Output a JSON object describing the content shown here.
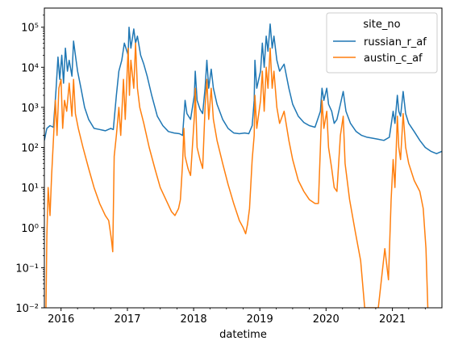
{
  "chart_data": {
    "type": "line",
    "title": "",
    "xlabel": "datetime",
    "ylabel": "",
    "yscale": "log",
    "ylim": [
      0.01,
      300000
    ],
    "xlim": [
      "2015-10-01",
      "2021-10-01"
    ],
    "x_ticks": [
      "2016",
      "2017",
      "2018",
      "2019",
      "2020",
      "2021"
    ],
    "y_ticks": [
      {
        "value": 0.01,
        "label": "10⁻²"
      },
      {
        "value": 0.1,
        "label": "10⁻¹"
      },
      {
        "value": 1,
        "label": "10⁰"
      },
      {
        "value": 10,
        "label": "10¹"
      },
      {
        "value": 100,
        "label": "10²"
      },
      {
        "value": 1000,
        "label": "10³"
      },
      {
        "value": 10000,
        "label": "10⁴"
      },
      {
        "value": 100000,
        "label": "10⁵"
      }
    ],
    "legend": {
      "title": "site_no",
      "position": "top-right"
    },
    "grid": false,
    "series": [
      {
        "name": "russian_r_af",
        "color": "#1f77b4",
        "points": [
          [
            "2015-10-01",
            150
          ],
          [
            "2015-10-15",
            300
          ],
          [
            "2015-11-01",
            350
          ],
          [
            "2015-11-20",
            320
          ],
          [
            "2015-12-05",
            3000
          ],
          [
            "2015-12-15",
            18000
          ],
          [
            "2015-12-25",
            5000
          ],
          [
            "2016-01-05",
            20000
          ],
          [
            "2016-01-15",
            4000
          ],
          [
            "2016-01-25",
            30000
          ],
          [
            "2016-02-05",
            8000
          ],
          [
            "2016-02-15",
            15000
          ],
          [
            "2016-03-01",
            6000
          ],
          [
            "2016-03-10",
            45000
          ],
          [
            "2016-03-20",
            20000
          ],
          [
            "2016-04-01",
            8000
          ],
          [
            "2016-04-20",
            3000
          ],
          [
            "2016-05-10",
            1000
          ],
          [
            "2016-06-01",
            500
          ],
          [
            "2016-07-01",
            300
          ],
          [
            "2016-08-01",
            280
          ],
          [
            "2016-09-01",
            260
          ],
          [
            "2016-10-01",
            300
          ],
          [
            "2016-10-15",
            280
          ],
          [
            "2016-11-01",
            2000
          ],
          [
            "2016-11-15",
            8000
          ],
          [
            "2016-12-01",
            15000
          ],
          [
            "2016-12-15",
            40000
          ],
          [
            "2017-01-05",
            20000
          ],
          [
            "2017-01-10",
            100000
          ],
          [
            "2017-01-20",
            30000
          ],
          [
            "2017-02-05",
            90000
          ],
          [
            "2017-02-15",
            40000
          ],
          [
            "2017-02-25",
            60000
          ],
          [
            "2017-03-15",
            20000
          ],
          [
            "2017-04-01",
            12000
          ],
          [
            "2017-04-20",
            6000
          ],
          [
            "2017-05-15",
            2000
          ],
          [
            "2017-06-15",
            600
          ],
          [
            "2017-07-15",
            350
          ],
          [
            "2017-08-15",
            250
          ],
          [
            "2017-09-15",
            230
          ],
          [
            "2017-10-15",
            220
          ],
          [
            "2017-11-01",
            200
          ],
          [
            "2017-11-15",
            1500
          ],
          [
            "2017-11-25",
            700
          ],
          [
            "2017-12-15",
            500
          ],
          [
            "2018-01-05",
            2000
          ],
          [
            "2018-01-10",
            8000
          ],
          [
            "2018-01-20",
            1500
          ],
          [
            "2018-02-05",
            900
          ],
          [
            "2018-02-20",
            700
          ],
          [
            "2018-03-05",
            3000
          ],
          [
            "2018-03-15",
            15000
          ],
          [
            "2018-03-25",
            3000
          ],
          [
            "2018-04-08",
            9000
          ],
          [
            "2018-04-20",
            3000
          ],
          [
            "2018-05-10",
            1200
          ],
          [
            "2018-06-10",
            500
          ],
          [
            "2018-07-10",
            300
          ],
          [
            "2018-08-10",
            230
          ],
          [
            "2018-09-10",
            220
          ],
          [
            "2018-10-10",
            230
          ],
          [
            "2018-11-01",
            220
          ],
          [
            "2018-11-20",
            350
          ],
          [
            "2018-12-01",
            1500
          ],
          [
            "2018-12-05",
            15000
          ],
          [
            "2018-12-15",
            3000
          ],
          [
            "2019-01-05",
            8000
          ],
          [
            "2019-01-15",
            40000
          ],
          [
            "2019-01-25",
            10000
          ],
          [
            "2019-02-05",
            60000
          ],
          [
            "2019-02-15",
            25000
          ],
          [
            "2019-02-27",
            120000
          ],
          [
            "2019-03-10",
            30000
          ],
          [
            "2019-03-20",
            60000
          ],
          [
            "2019-04-05",
            15000
          ],
          [
            "2019-04-20",
            8000
          ],
          [
            "2019-05-15",
            12000
          ],
          [
            "2019-06-10",
            3000
          ],
          [
            "2019-07-01",
            1200
          ],
          [
            "2019-08-01",
            600
          ],
          [
            "2019-09-01",
            420
          ],
          [
            "2019-10-01",
            350
          ],
          [
            "2019-11-01",
            320
          ],
          [
            "2019-12-01",
            800
          ],
          [
            "2019-12-10",
            3000
          ],
          [
            "2019-12-20",
            1500
          ],
          [
            "2020-01-05",
            3000
          ],
          [
            "2020-01-15",
            1200
          ],
          [
            "2020-02-01",
            800
          ],
          [
            "2020-02-15",
            400
          ],
          [
            "2020-03-01",
            500
          ],
          [
            "2020-03-20",
            1200
          ],
          [
            "2020-04-05",
            2500
          ],
          [
            "2020-04-20",
            800
          ],
          [
            "2020-05-15",
            400
          ],
          [
            "2020-06-15",
            250
          ],
          [
            "2020-07-15",
            200
          ],
          [
            "2020-08-15",
            180
          ],
          [
            "2020-09-15",
            170
          ],
          [
            "2020-10-15",
            160
          ],
          [
            "2020-11-15",
            150
          ],
          [
            "2020-12-15",
            180
          ],
          [
            "2021-01-05",
            800
          ],
          [
            "2021-01-15",
            400
          ],
          [
            "2021-01-28",
            2000
          ],
          [
            "2021-02-05",
            800
          ],
          [
            "2021-02-15",
            600
          ],
          [
            "2021-03-01",
            2500
          ],
          [
            "2021-03-15",
            700
          ],
          [
            "2021-04-01",
            400
          ],
          [
            "2021-05-01",
            250
          ],
          [
            "2021-06-01",
            150
          ],
          [
            "2021-07-01",
            100
          ],
          [
            "2021-08-01",
            80
          ],
          [
            "2021-09-01",
            70
          ],
          [
            "2021-10-01",
            80
          ]
        ]
      },
      {
        "name": "austin_c_af",
        "color": "#ff7f0e",
        "points": [
          [
            "2015-10-10",
            0.01
          ],
          [
            "2015-10-15",
            0.6
          ],
          [
            "2015-10-22",
            10
          ],
          [
            "2015-11-01",
            2
          ],
          [
            "2015-11-10",
            20
          ],
          [
            "2015-11-20",
            150
          ],
          [
            "2015-12-01",
            1500
          ],
          [
            "2015-12-10",
            200
          ],
          [
            "2015-12-20",
            3000
          ],
          [
            "2016-01-01",
            5000
          ],
          [
            "2016-01-10",
            300
          ],
          [
            "2016-01-20",
            1500
          ],
          [
            "2016-02-01",
            800
          ],
          [
            "2016-02-15",
            4000
          ],
          [
            "2016-03-01",
            600
          ],
          [
            "2016-03-10",
            5000
          ],
          [
            "2016-03-20",
            700
          ],
          [
            "2016-04-05",
            300
          ],
          [
            "2016-05-01",
            100
          ],
          [
            "2016-06-01",
            30
          ],
          [
            "2016-07-01",
            10
          ],
          [
            "2016-08-01",
            4
          ],
          [
            "2016-09-01",
            2
          ],
          [
            "2016-09-20",
            1.5
          ],
          [
            "2016-10-05",
            0.5
          ],
          [
            "2016-10-12",
            0.25
          ],
          [
            "2016-10-20",
            60
          ],
          [
            "2016-11-01",
            200
          ],
          [
            "2016-11-15",
            1000
          ],
          [
            "2016-11-25",
            200
          ],
          [
            "2016-12-10",
            5000
          ],
          [
            "2016-12-20",
            500
          ],
          [
            "2017-01-05",
            30000
          ],
          [
            "2017-01-12",
            2000
          ],
          [
            "2017-01-20",
            15000
          ],
          [
            "2017-02-05",
            3000
          ],
          [
            "2017-02-15",
            40000
          ],
          [
            "2017-02-25",
            3000
          ],
          [
            "2017-03-10",
            1000
          ],
          [
            "2017-04-01",
            400
          ],
          [
            "2017-05-01",
            100
          ],
          [
            "2017-06-01",
            30
          ],
          [
            "2017-07-01",
            10
          ],
          [
            "2017-08-01",
            5
          ],
          [
            "2017-09-01",
            2.5
          ],
          [
            "2017-09-20",
            2
          ],
          [
            "2017-10-10",
            3
          ],
          [
            "2017-10-20",
            5
          ],
          [
            "2017-11-01",
            40
          ],
          [
            "2017-11-08",
            300
          ],
          [
            "2017-11-15",
            60
          ],
          [
            "2017-12-01",
            30
          ],
          [
            "2017-12-15",
            20
          ],
          [
            "2018-01-05",
            600
          ],
          [
            "2018-01-10",
            3000
          ],
          [
            "2018-01-20",
            100
          ],
          [
            "2018-02-05",
            50
          ],
          [
            "2018-02-20",
            30
          ],
          [
            "2018-03-05",
            1000
          ],
          [
            "2018-03-15",
            5000
          ],
          [
            "2018-03-25",
            500
          ],
          [
            "2018-04-08",
            3000
          ],
          [
            "2018-04-20",
            500
          ],
          [
            "2018-05-10",
            150
          ],
          [
            "2018-06-10",
            40
          ],
          [
            "2018-07-10",
            12
          ],
          [
            "2018-08-10",
            4
          ],
          [
            "2018-09-10",
            1.5
          ],
          [
            "2018-10-01",
            1
          ],
          [
            "2018-10-15",
            0.7
          ],
          [
            "2018-10-25",
            1.2
          ],
          [
            "2018-11-05",
            3
          ],
          [
            "2018-11-20",
            50
          ],
          [
            "2018-12-01",
            200
          ],
          [
            "2018-12-05",
            2000
          ],
          [
            "2018-12-15",
            300
          ],
          [
            "2019-01-05",
            1500
          ],
          [
            "2019-01-15",
            8000
          ],
          [
            "2019-01-25",
            800
          ],
          [
            "2019-02-05",
            10000
          ],
          [
            "2019-02-15",
            3000
          ],
          [
            "2019-02-27",
            30000
          ],
          [
            "2019-03-10",
            3000
          ],
          [
            "2019-03-20",
            8000
          ],
          [
            "2019-04-05",
            1000
          ],
          [
            "2019-04-20",
            400
          ],
          [
            "2019-05-15",
            800
          ],
          [
            "2019-06-10",
            150
          ],
          [
            "2019-07-01",
            50
          ],
          [
            "2019-08-01",
            15
          ],
          [
            "2019-09-01",
            8
          ],
          [
            "2019-10-01",
            5
          ],
          [
            "2019-11-01",
            4
          ],
          [
            "2019-11-20",
            4
          ],
          [
            "2019-12-01",
            100
          ],
          [
            "2019-12-10",
            1500
          ],
          [
            "2019-12-20",
            300
          ],
          [
            "2020-01-05",
            800
          ],
          [
            "2020-01-15",
            100
          ],
          [
            "2020-02-01",
            30
          ],
          [
            "2020-02-15",
            10
          ],
          [
            "2020-03-01",
            8
          ],
          [
            "2020-03-20",
            200
          ],
          [
            "2020-04-05",
            600
          ],
          [
            "2020-04-15",
            40
          ],
          [
            "2020-05-10",
            5
          ],
          [
            "2020-06-10",
            0.8
          ],
          [
            "2020-07-10",
            0.15
          ],
          [
            "2020-08-01",
            0.01
          ],
          [
            "2020-09-01",
            0.01
          ],
          [
            "2020-10-15",
            0.01
          ],
          [
            "2020-11-20",
            0.3
          ],
          [
            "2020-12-10",
            0.05
          ],
          [
            "2020-12-25",
            5
          ],
          [
            "2021-01-05",
            50
          ],
          [
            "2021-01-15",
            10
          ],
          [
            "2021-01-28",
            600
          ],
          [
            "2021-02-05",
            100
          ],
          [
            "2021-02-15",
            50
          ],
          [
            "2021-03-01",
            700
          ],
          [
            "2021-03-15",
            100
          ],
          [
            "2021-04-01",
            40
          ],
          [
            "2021-05-01",
            15
          ],
          [
            "2021-06-01",
            8
          ],
          [
            "2021-06-20",
            3
          ],
          [
            "2021-07-05",
            0.3
          ],
          [
            "2021-07-15",
            0.01
          ]
        ]
      }
    ]
  }
}
